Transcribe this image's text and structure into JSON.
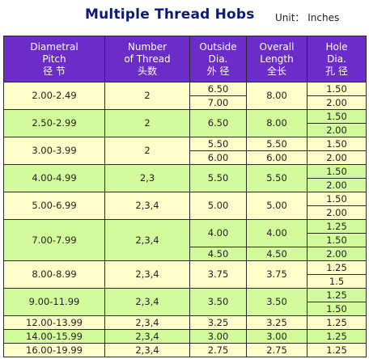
{
  "title": "Multiple Thread Hobs",
  "unit": "Unit： Inches",
  "headers": [
    {
      "l1": "Diametral",
      "l2": "Pitch",
      "l3": "径 节"
    },
    {
      "l1": "Number",
      "l2": "of Thread",
      "l3": "头数"
    },
    {
      "l1": "Outside",
      "l2": "Dia.",
      "l3": "外 径"
    },
    {
      "l1": "Overall",
      "l2": "Length",
      "l3": "全长"
    },
    {
      "l1": "Hole",
      "l2": "Dia.",
      "l3": "孔 径"
    }
  ],
  "groups": [
    {
      "pitch": "2.00-2.49",
      "threads": "2",
      "outside": [
        "6.50",
        "7.00"
      ],
      "length": [
        "8.00"
      ],
      "hole": [
        "1.50",
        "2.00"
      ]
    },
    {
      "pitch": "2.50-2.99",
      "threads": "2",
      "outside": [
        "6.50"
      ],
      "length": [
        "8.00"
      ],
      "hole": [
        "1.50",
        "2.00"
      ]
    },
    {
      "pitch": "3.00-3.99",
      "threads": "2",
      "outside": [
        "5.50",
        "6.00"
      ],
      "length": [
        "5.50",
        "6.00"
      ],
      "hole": [
        "1.50",
        "2.00"
      ]
    },
    {
      "pitch": "4.00-4.99",
      "threads": "2,3",
      "outside": [
        "5.50"
      ],
      "length": [
        "5.50"
      ],
      "hole": [
        "1.50",
        "2.00"
      ]
    },
    {
      "pitch": "5.00-6.99",
      "threads": "2,3,4",
      "outside": [
        "5.00"
      ],
      "length": [
        "5.00"
      ],
      "hole": [
        "1.50",
        "2.00"
      ]
    },
    {
      "pitch": "7.00-7.99",
      "threads": "2,3,4",
      "outside": [
        "4.00",
        "4.50"
      ],
      "length": [
        "4.00",
        "4.50"
      ],
      "hole": [
        "1.25",
        "1.50",
        "2.00"
      ]
    },
    {
      "pitch": "8.00-8.99",
      "threads": "2,3,4",
      "outside": [
        "3.75"
      ],
      "length": [
        "3.75"
      ],
      "hole": [
        "1.25",
        "1.5"
      ]
    },
    {
      "pitch": "9.00-11.99",
      "threads": "2,3,4",
      "outside": [
        "3.50"
      ],
      "length": [
        "3.50"
      ],
      "hole": [
        "1.25",
        "1.50"
      ]
    },
    {
      "pitch": "12.00-13.99",
      "threads": "2,3,4",
      "outside": [
        "3.25"
      ],
      "length": [
        "3.25"
      ],
      "hole": [
        "1.25"
      ]
    },
    {
      "pitch": "14.00-15.99",
      "threads": "2,3,4",
      "outside": [
        "3.00"
      ],
      "length": [
        "3.00"
      ],
      "hole": [
        "1.25"
      ]
    },
    {
      "pitch": "16.00-19.99",
      "threads": "2,3,4",
      "outside": [
        "2.75"
      ],
      "length": [
        "2.75"
      ],
      "hole": [
        "1.25"
      ]
    }
  ],
  "colors": {
    "header": "#6b2cc9",
    "row_yellow": "#fefcc8",
    "row_green": "#d3fb9b",
    "title": "#0b1a78"
  }
}
